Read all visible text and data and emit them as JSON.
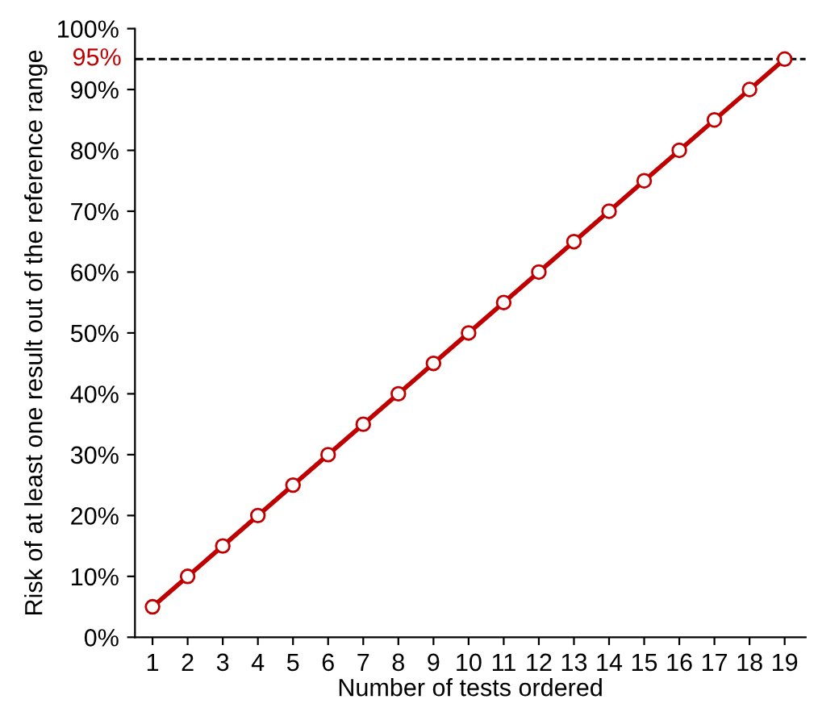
{
  "chart_data": {
    "type": "line",
    "xlabel": "Number of tests ordered",
    "ylabel": "Risk of at least one result out of the reference range",
    "x": [
      1,
      2,
      3,
      4,
      5,
      6,
      7,
      8,
      9,
      10,
      11,
      12,
      13,
      14,
      15,
      16,
      17,
      18,
      19
    ],
    "series": [
      {
        "color": "#c00000",
        "values": [
          5,
          10,
          15,
          20,
          25,
          30,
          35,
          40,
          45,
          50,
          55,
          60,
          65,
          70,
          75,
          80,
          85,
          90,
          95
        ]
      }
    ],
    "marker": "circle",
    "line_style": "solid",
    "grid": false,
    "legend": false,
    "xlim": [
      0.5,
      19.6
    ],
    "xticks": [
      1,
      2,
      3,
      4,
      5,
      6,
      7,
      8,
      9,
      10,
      11,
      12,
      13,
      14,
      15,
      16,
      17,
      18,
      19
    ],
    "ylim": [
      0,
      100
    ],
    "yticks": [
      {
        "value": 0,
        "label": "0%"
      },
      {
        "value": 10,
        "label": "10%"
      },
      {
        "value": 20,
        "label": "20%"
      },
      {
        "value": 30,
        "label": "30%"
      },
      {
        "value": 40,
        "label": "40%"
      },
      {
        "value": 50,
        "label": "50%"
      },
      {
        "value": 60,
        "label": "60%"
      },
      {
        "value": 70,
        "label": "70%"
      },
      {
        "value": 80,
        "label": "80%"
      },
      {
        "value": 90,
        "label": "90%"
      },
      {
        "value": 100,
        "label": "100%"
      }
    ],
    "ref_lines": [
      {
        "axis": "y",
        "value": 95,
        "label": "95%",
        "color": "#000000",
        "line_style": "dashed"
      }
    ]
  }
}
